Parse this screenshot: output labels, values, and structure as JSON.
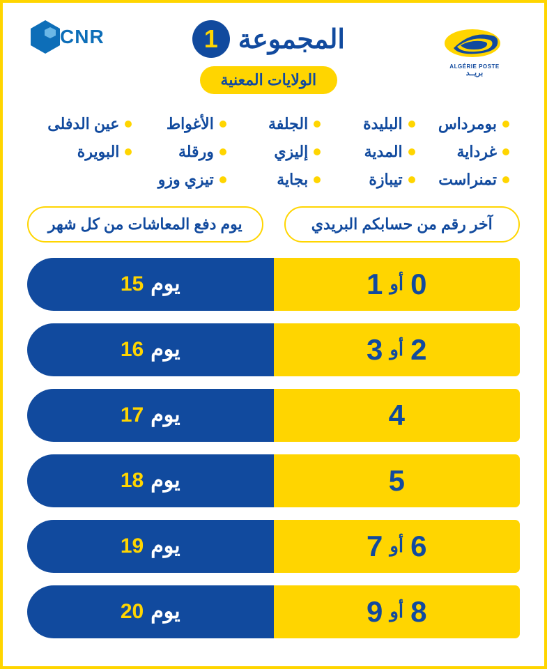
{
  "colors": {
    "blue": "#114a9e",
    "yellow": "#ffd500",
    "white": "#ffffff",
    "cnr_blue": "#0d6eb8"
  },
  "logos": {
    "poste_sub": "ALGÉRIE POSTE",
    "cnr_text": "CNR"
  },
  "title": {
    "group_label": "المجموعة",
    "group_number": "1",
    "subtitle": "الولايات المعنية"
  },
  "wilayas": [
    "بومرداس",
    "البليدة",
    "الجلفة",
    "الأغواط",
    "عين الدفلى",
    "غرداية",
    "المدية",
    "إليزي",
    "ورقلة",
    "البويرة",
    "تمنراست",
    "تيبازة",
    "بجاية",
    "تيزي وزو",
    ""
  ],
  "headers": {
    "right": "آخر رقم من حسابكم البريدي",
    "left": "يوم دفع المعاشات من كل شهر"
  },
  "day_word": "يوم",
  "sep_word": "أو",
  "rows": [
    {
      "digits": [
        "0",
        "1"
      ],
      "day": "15"
    },
    {
      "digits": [
        "2",
        "3"
      ],
      "day": "16"
    },
    {
      "digits": [
        "4"
      ],
      "day": "17"
    },
    {
      "digits": [
        "5"
      ],
      "day": "18"
    },
    {
      "digits": [
        "6",
        "7"
      ],
      "day": "19"
    },
    {
      "digits": [
        "8",
        "9"
      ],
      "day": "20"
    }
  ]
}
